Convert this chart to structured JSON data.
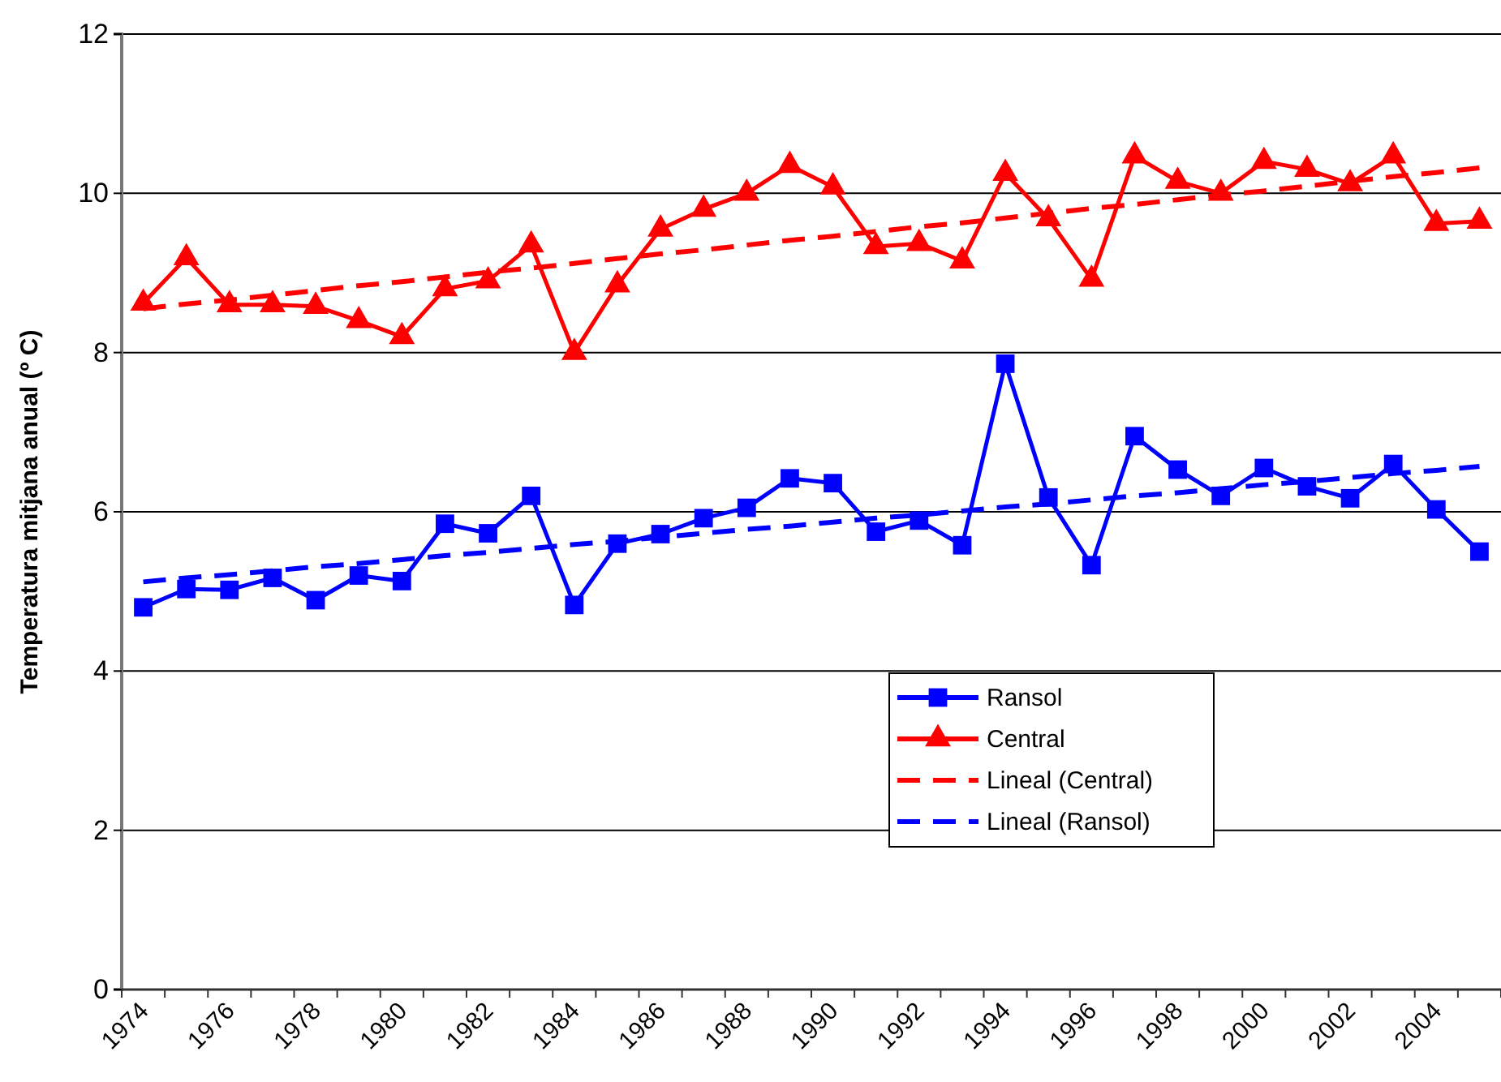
{
  "chart_data": {
    "type": "line",
    "ylabel": "Temperatura mitjana anual (º C)",
    "categories": [
      "1974",
      null,
      "1976",
      null,
      "1978",
      null,
      "1980",
      null,
      "1982",
      null,
      "1984",
      null,
      "1986",
      null,
      "1988",
      null,
      "1990",
      null,
      "1992",
      null,
      "1994",
      null,
      "1996",
      null,
      "1998",
      null,
      "2000",
      null,
      "2002",
      null,
      "2004",
      null
    ],
    "ylim": [
      0,
      12
    ],
    "yticks": [
      0,
      2,
      4,
      6,
      8,
      10,
      12
    ],
    "grid": "y",
    "legend": "right",
    "series": [
      {
        "name": "Ransol",
        "color": "#0000ff",
        "marker": "square",
        "line_style": "solid",
        "values": [
          4.8,
          5.03,
          5.02,
          5.17,
          4.89,
          5.2,
          5.13,
          5.85,
          5.73,
          6.2,
          4.83,
          5.6,
          5.72,
          5.92,
          6.05,
          6.42,
          6.36,
          5.75,
          5.89,
          5.58,
          7.86,
          6.18,
          5.33,
          6.95,
          6.53,
          6.2,
          6.55,
          6.32,
          6.17,
          6.6,
          6.03,
          5.5
        ]
      },
      {
        "name": "Central",
        "color": "#ff0000",
        "marker": "triangle",
        "line_style": "solid",
        "values": [
          8.62,
          9.19,
          8.6,
          8.6,
          8.58,
          8.4,
          8.2,
          8.8,
          8.9,
          9.35,
          8.0,
          8.85,
          9.55,
          9.8,
          10.0,
          10.35,
          10.08,
          9.33,
          9.37,
          9.15,
          10.25,
          9.68,
          8.92,
          10.47,
          10.15,
          10.0,
          10.4,
          10.3,
          10.12,
          10.47,
          9.62,
          9.65
        ]
      },
      {
        "name": "Lineal (Central)",
        "color": "#ff0000",
        "marker": "none",
        "line_style": "dashed",
        "values": [
          8.55,
          8.61,
          8.66,
          8.72,
          8.78,
          8.84,
          8.89,
          8.95,
          9.01,
          9.06,
          9.12,
          9.18,
          9.24,
          9.29,
          9.35,
          9.41,
          9.46,
          9.52,
          9.58,
          9.63,
          9.69,
          9.75,
          9.81,
          9.86,
          9.92,
          9.98,
          10.03,
          10.09,
          10.15,
          10.21,
          10.26,
          10.32
        ]
      },
      {
        "name": "Lineal (Ransol)",
        "color": "#0000ff",
        "marker": "none",
        "line_style": "dashed",
        "values": [
          5.12,
          5.17,
          5.21,
          5.26,
          5.31,
          5.35,
          5.4,
          5.45,
          5.49,
          5.54,
          5.59,
          5.63,
          5.68,
          5.73,
          5.78,
          5.82,
          5.87,
          5.92,
          5.96,
          6.01,
          6.06,
          6.1,
          6.15,
          6.2,
          6.24,
          6.29,
          6.34,
          6.38,
          6.43,
          6.48,
          6.52,
          6.57
        ]
      }
    ]
  }
}
